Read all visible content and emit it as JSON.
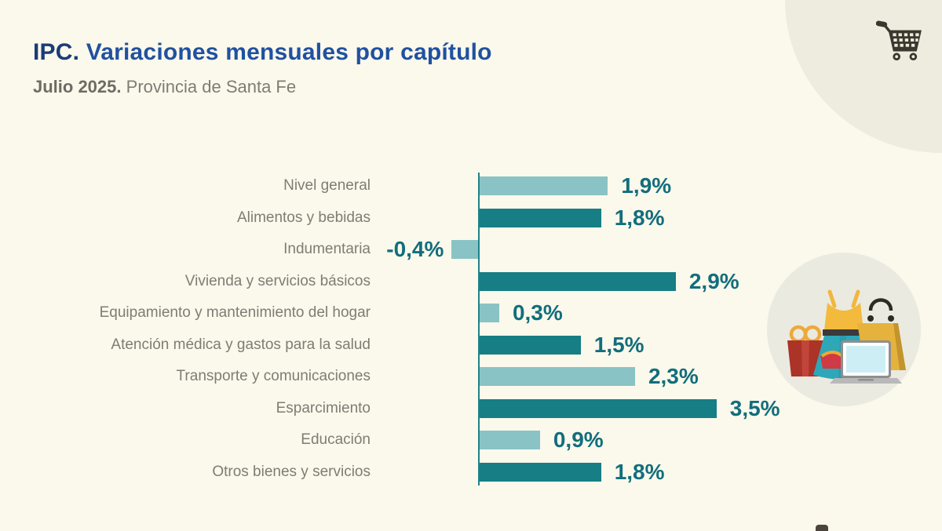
{
  "header": {
    "title_bold": "IPC.",
    "title_rest": "Variaciones mensuales por capítulo",
    "subtitle_bold": "Julio 2025.",
    "subtitle_rest": "Provincia de Santa Fe"
  },
  "icons": {
    "top_right": "shopping-cart-icon",
    "side": "shopping-items-illustration (dress, gift box, shopping bag, laptop, purse in circle)"
  },
  "colors": {
    "bg": "#fbf8ec",
    "corner": "#edecdf",
    "title-accent": "#1c3b76",
    "title-main": "#2051a0",
    "subtitle-accent": "#6d6c64",
    "subtitle-main": "#7e7d74",
    "cat-label": "#7e7d74",
    "value-text": "#126e7c",
    "axis": "#1f828a",
    "bar-light": "#8ac3c5",
    "bar-dark": "#167e84",
    "circle-bg": "#ebeae1",
    "cart": "#3a372e"
  },
  "chart_data": {
    "type": "bar",
    "orientation": "horizontal",
    "title": "IPC. Variaciones mensuales por capítulo",
    "subtitle": "Julio 2025. Provincia de Santa Fe",
    "unit": "%",
    "decimal_separator": ",",
    "categories": [
      "Nivel general",
      "Alimentos y bebidas",
      "Indumentaria",
      "Vivienda y servicios básicos",
      "Equipamiento y mantenimiento del hogar",
      "Atención médica y gastos para la salud",
      "Transporte y comunicaciones",
      "Esparcimiento",
      "Educación",
      "Otros bienes y servicios"
    ],
    "values": [
      1.9,
      1.8,
      -0.4,
      2.9,
      0.3,
      1.5,
      2.3,
      3.5,
      0.9,
      1.8
    ],
    "value_labels": [
      "1,9%",
      "1,8%",
      "-0,4%",
      "2,9%",
      "0,3%",
      "1,5%",
      "2,3%",
      "3,5%",
      "0,9%",
      "1,8%"
    ],
    "bar_palette": {
      "light": "#8ac3c5",
      "dark": "#167e84"
    },
    "bar_color_sequence": [
      "light",
      "dark",
      "light",
      "dark",
      "light",
      "dark",
      "light",
      "dark",
      "light",
      "dark"
    ],
    "xlim": [
      -0.5,
      4.2
    ],
    "grid": false,
    "legend": false,
    "value_labels_position": "end-of-bar"
  }
}
